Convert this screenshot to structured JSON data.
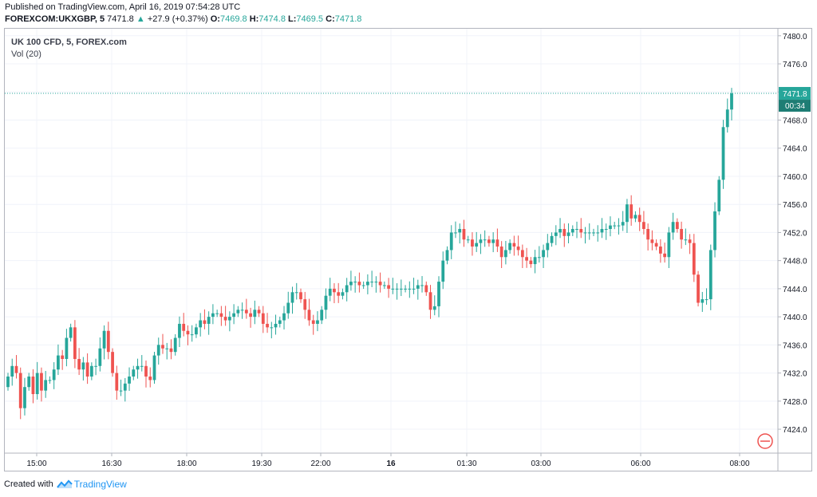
{
  "header": {
    "published": "Published on TradingView.com, April 16, 2019 07:54:28 UTC",
    "symbol": "FOREXCOM:UKXGBP, 5",
    "last": "7471.8",
    "change": "+27.9 (+0.37%)",
    "open_label": "O:",
    "open": "7469.8",
    "high_label": "H:",
    "high": "7474.8",
    "low_label": "L:",
    "low": "7469.5",
    "close_label": "C:",
    "close": "7471.8",
    "up_arrow_icon": "triangle-up-icon"
  },
  "legend": {
    "title": "UK 100 CFD, 5, FOREX.com",
    "indicator": "Vol (20)"
  },
  "price_tag": {
    "value": "7471.8",
    "countdown": "00:34"
  },
  "footer": {
    "created_with": "Created with",
    "brand": "TradingView",
    "logo_icon": "tradingview-logo-icon"
  },
  "colors": {
    "up": "#26a69a",
    "down": "#ef5350",
    "grid": "#f0f3fa",
    "axis_text": "#131722",
    "price_line": "#26a69a"
  },
  "chart_data": {
    "type": "candlestick",
    "title": "UK 100 CFD, 5, FOREX.com",
    "y_ticks": [
      7480.0,
      7476.0,
      7472.0,
      7468.0,
      7464.0,
      7460.0,
      7456.0,
      7452.0,
      7448.0,
      7444.0,
      7440.0,
      7436.0,
      7432.0,
      7428.0,
      7424.0
    ],
    "y_tick_labels": [
      "7480.0",
      "7476.0",
      "7472.0",
      "7468.0",
      "7464.0",
      "7460.0",
      "7456.0",
      "7452.0",
      "7448.0",
      "7444.0",
      "7440.0",
      "7436.0",
      "7432.0",
      "7428.0",
      "7424.0"
    ],
    "ylim": [
      7420.6,
      7481.0
    ],
    "x_ticks": [
      "15:00",
      "16:30",
      "18:00",
      "19:30",
      "22:00",
      "16",
      "01:30",
      "03:00",
      "06:00",
      "08:00"
    ],
    "grid": true,
    "last_price": 7471.8,
    "last_price_label": "7471.8",
    "countdown": "00:34",
    "closes": [
      7431.5,
      7433.0,
      7432.0,
      7427.0,
      7430.0,
      7431.5,
      7429.0,
      7432.0,
      7429.5,
      7431.0,
      7431.0,
      7432.5,
      7434.5,
      7434.0,
      7437.0,
      7438.5,
      7434.0,
      7432.5,
      7433.5,
      7431.5,
      7433.0,
      7433.0,
      7435.5,
      7438.0,
      7435.0,
      7432.0,
      7429.5,
      7429.5,
      7430.5,
      7431.5,
      7432.5,
      7433.0,
      7433.0,
      7431.5,
      7431.0,
      7434.5,
      7436.0,
      7435.5,
      7435.5,
      7435.0,
      7437.0,
      7439.0,
      7438.0,
      7437.5,
      7437.5,
      7438.5,
      7439.5,
      7439.0,
      7440.0,
      7440.5,
      7440.5,
      7440.0,
      7439.5,
      7440.0,
      7440.5,
      7441.0,
      7441.0,
      7440.5,
      7440.0,
      7441.0,
      7440.5,
      7439.0,
      7438.5,
      7438.5,
      7439.0,
      7439.5,
      7440.5,
      7442.0,
      7443.5,
      7443.5,
      7442.5,
      7441.0,
      7439.5,
      7439.0,
      7439.5,
      7441.0,
      7443.0,
      7444.0,
      7443.5,
      7443.0,
      7443.5,
      7444.5,
      7445.0,
      7445.0,
      7444.5,
      7444.5,
      7445.0,
      7445.0,
      7445.0,
      7444.5,
      7444.5,
      7444.0,
      7444.0,
      7444.0,
      7444.0,
      7444.0,
      7444.0,
      7444.0,
      7444.5,
      7444.5,
      7443.5,
      7441.0,
      7441.5,
      7445.0,
      7448.0,
      7449.5,
      7452.0,
      7452.0,
      7452.5,
      7451.0,
      7451.0,
      7450.0,
      7450.5,
      7451.0,
      7451.0,
      7450.5,
      7451.0,
      7450.0,
      7448.5,
      7449.5,
      7450.5,
      7450.0,
      7449.5,
      7448.5,
      7448.0,
      7447.5,
      7448.5,
      7448.5,
      7449.5,
      7450.5,
      7451.5,
      7452.0,
      7452.5,
      7451.5,
      7452.0,
      7452.5,
      7452.5,
      7452.0,
      7452.0,
      7452.0,
      7452.0,
      7452.0,
      7452.5,
      7452.5,
      7453.0,
      7453.0,
      7453.0,
      7453.5,
      7456.0,
      7454.0,
      7454.5,
      7453.5,
      7452.5,
      7451.0,
      7450.5,
      7450.0,
      7449.0,
      7448.5,
      7452.0,
      7453.5,
      7452.5,
      7451.0,
      7451.0,
      7450.5,
      7446.0,
      7442.0,
      7442.5,
      7442.5,
      7449.5,
      7455.0,
      7459.5,
      7467.0,
      7469.5,
      7471.8
    ],
    "highs_offset": 1.3,
    "lows_offset": 1.3
  }
}
